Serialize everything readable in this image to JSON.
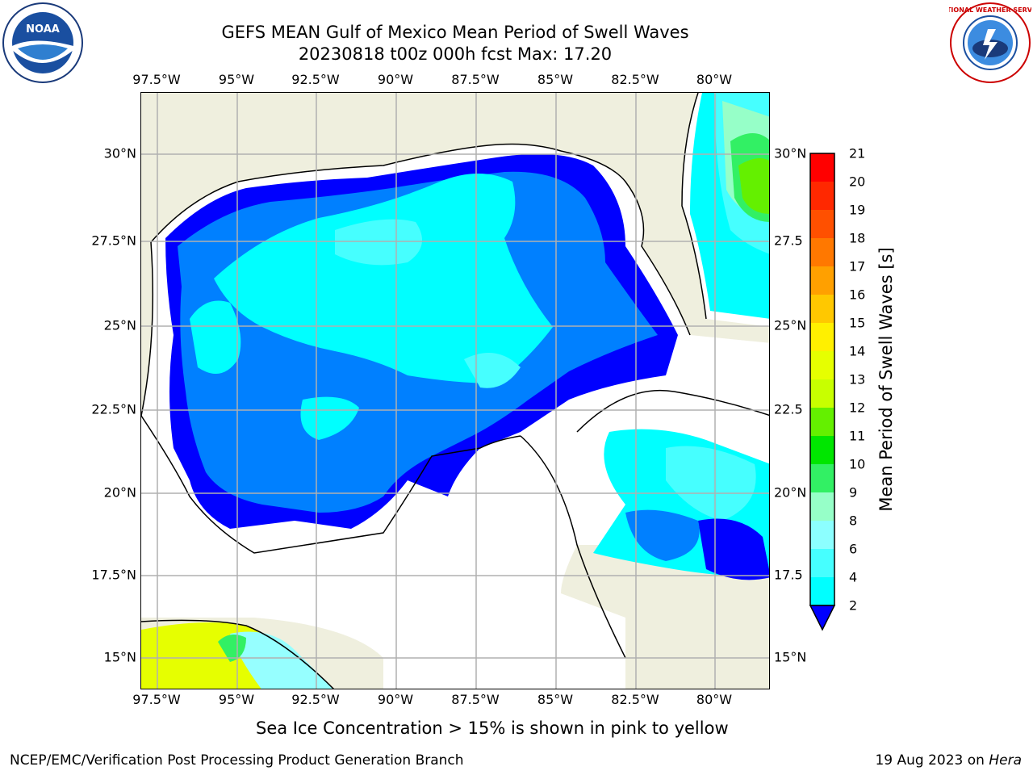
{
  "title": {
    "line1": "GEFS MEAN Gulf of Mexico Mean Period of Swell Waves",
    "line2": "20230818 t00z 000h fcst   Max: 17.20"
  },
  "map": {
    "lon_labels": [
      "97.5°W",
      "95°W",
      "92.5°W",
      "90°W",
      "87.5°W",
      "85°W",
      "82.5°W",
      "80°W"
    ],
    "lat_labels_left": [
      "30°N",
      "27.5°N",
      "25°N",
      "22.5°N",
      "20°N",
      "17.5°N",
      "15°N"
    ],
    "lat_labels_right": [
      "30°N",
      "27.5",
      "25°N",
      "22.5",
      "20°N",
      "17.5",
      "15°N"
    ],
    "land_color": "#efefde",
    "coast_color": "#000000",
    "grid_color": "#b0b0b0"
  },
  "colorbar": {
    "label": "Mean Period of Swell Waves [s]",
    "ticks": [
      "21",
      "20",
      "19",
      "18",
      "17",
      "16",
      "15",
      "14",
      "13",
      "12",
      "11",
      "10",
      "9",
      "8",
      "6",
      "4",
      "2"
    ],
    "colors": [
      "#ff0000",
      "#ff2800",
      "#ff5000",
      "#ff7800",
      "#ffa000",
      "#ffc800",
      "#fff000",
      "#e6ff00",
      "#c8ff00",
      "#64f000",
      "#00e600",
      "#32f064",
      "#96ffc8",
      "#8cffff",
      "#46ffff",
      "#00ffff",
      "#0080ff",
      "#0000ff"
    ]
  },
  "caption": "Sea Ice Concentration > 15% is shown in pink to yellow",
  "footer": {
    "left": "NCEP/EMC/Verification Post Processing Product Generation Branch",
    "right_date": "19 Aug 2023 on",
    "right_host": "Hera"
  },
  "logos": {
    "noaa_text": "NOAA",
    "nws_text": "NATIONAL WEATHER SERVICE"
  }
}
